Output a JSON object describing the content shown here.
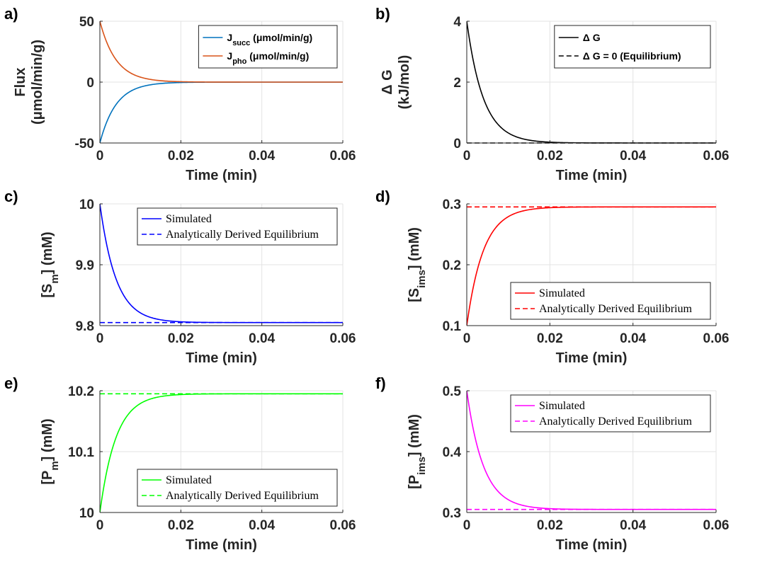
{
  "chart_data": [
    {
      "panel": "a)",
      "type": "line",
      "xlabel": "Time (min)",
      "ylabel": "Flux",
      "ylabel2": "(μmol/min/g)",
      "xlim": [
        0,
        0.06
      ],
      "ylim": [
        -50,
        50
      ],
      "xticks": [
        0,
        0.02,
        0.04,
        0.06
      ],
      "xtick_labels": [
        "0",
        "0.02",
        "0.04",
        "0.06"
      ],
      "yticks": [
        -50,
        0,
        50
      ],
      "ytick_labels": [
        "-50",
        "0",
        "50"
      ],
      "grid": true,
      "legend_position": "top-right",
      "legend_style": "sans",
      "series": [
        {
          "name": "J",
          "name_sub": "succ",
          "name_suffix": " (μmol/min/g)",
          "color": "#0072BD",
          "dash": "solid",
          "kind": "exp",
          "start": -50,
          "end": 0,
          "tau": 0.004
        },
        {
          "name": "J",
          "name_sub": "pho",
          "name_suffix": " (μmol/min/g)",
          "color": "#D95319",
          "dash": "solid",
          "kind": "exp",
          "start": 50,
          "end": 0,
          "tau": 0.004
        }
      ]
    },
    {
      "panel": "b)",
      "type": "line",
      "xlabel": "Time (min)",
      "ylabel": "Δ G",
      "ylabel2": "(kJ/mol)",
      "xlim": [
        0,
        0.06
      ],
      "ylim": [
        0,
        4
      ],
      "xticks": [
        0,
        0.02,
        0.04,
        0.06
      ],
      "xtick_labels": [
        "0",
        "0.02",
        "0.04",
        "0.06"
      ],
      "yticks": [
        0,
        2,
        4
      ],
      "ytick_labels": [
        "0",
        "2",
        "4"
      ],
      "grid": true,
      "legend_position": "top-right",
      "legend_style": "sans",
      "series": [
        {
          "name": "Δ G",
          "color": "#000000",
          "dash": "solid",
          "kind": "exp",
          "start": 4,
          "end": 0,
          "tau": 0.004
        },
        {
          "name": "Δ G = 0 (Equilibrium)",
          "color": "#000000",
          "dash": "dashed",
          "kind": "const",
          "value": 0
        }
      ]
    },
    {
      "panel": "c)",
      "type": "line",
      "xlabel": "Time (min)",
      "ylabel": "[S",
      "ylabel_sub": "m",
      "ylabel_suffix": "] (mM)",
      "xlim": [
        0,
        0.06
      ],
      "ylim": [
        9.8,
        10
      ],
      "xticks": [
        0,
        0.02,
        0.04,
        0.06
      ],
      "xtick_labels": [
        "0",
        "0.02",
        "0.04",
        "0.06"
      ],
      "yticks": [
        9.8,
        9.9,
        10
      ],
      "ytick_labels": [
        "9.8",
        "9.9",
        "10"
      ],
      "grid": true,
      "legend_position": "top-right",
      "legend_style": "serif",
      "series": [
        {
          "name": "Simulated",
          "color": "#0000FF",
          "dash": "solid",
          "kind": "exp",
          "start": 10,
          "end": 9.805,
          "tau": 0.004
        },
        {
          "name": "Analytically Derived Equilibrium",
          "color": "#0000FF",
          "dash": "dashed",
          "kind": "const",
          "value": 9.805
        }
      ]
    },
    {
      "panel": "d)",
      "type": "line",
      "xlabel": "Time (min)",
      "ylabel": "[S",
      "ylabel_sub": "ims",
      "ylabel_suffix": "] (mM)",
      "xlim": [
        0,
        0.06
      ],
      "ylim": [
        0.1,
        0.3
      ],
      "xticks": [
        0,
        0.02,
        0.04,
        0.06
      ],
      "xtick_labels": [
        "0",
        "0.02",
        "0.04",
        "0.06"
      ],
      "yticks": [
        0.1,
        0.2,
        0.3
      ],
      "ytick_labels": [
        "0.1",
        "0.2",
        "0.3"
      ],
      "grid": true,
      "legend_position": "lower-right",
      "legend_style": "serif",
      "series": [
        {
          "name": "Simulated",
          "color": "#FF0000",
          "dash": "solid",
          "kind": "exp",
          "start": 0.1,
          "end": 0.295,
          "tau": 0.004
        },
        {
          "name": "Analytically Derived Equilibrium",
          "color": "#FF0000",
          "dash": "dashed",
          "kind": "const",
          "value": 0.295
        }
      ]
    },
    {
      "panel": "e)",
      "type": "line",
      "xlabel": "Time (min)",
      "ylabel": "[P",
      "ylabel_sub": "m",
      "ylabel_suffix": "] (mM)",
      "xlim": [
        0,
        0.06
      ],
      "ylim": [
        10,
        10.2
      ],
      "xticks": [
        0,
        0.02,
        0.04,
        0.06
      ],
      "xtick_labels": [
        "0",
        "0.02",
        "0.04",
        "0.06"
      ],
      "yticks": [
        10,
        10.1,
        10.2
      ],
      "ytick_labels": [
        "10",
        "10.1",
        "10.2"
      ],
      "grid": true,
      "legend_position": "lower-right",
      "legend_style": "serif",
      "series": [
        {
          "name": "Simulated",
          "color": "#00FF00",
          "dash": "solid",
          "kind": "exp",
          "start": 10,
          "end": 10.195,
          "tau": 0.004
        },
        {
          "name": "Analytically Derived Equilibrium",
          "color": "#00FF00",
          "dash": "dashed",
          "kind": "const",
          "value": 10.195
        }
      ]
    },
    {
      "panel": "f)",
      "type": "line",
      "xlabel": "Time (min)",
      "ylabel": "[P",
      "ylabel_sub": "ims",
      "ylabel_suffix": "] (mM)",
      "xlim": [
        0,
        0.06
      ],
      "ylim": [
        0.3,
        0.5
      ],
      "xticks": [
        0,
        0.02,
        0.04,
        0.06
      ],
      "xtick_labels": [
        "0",
        "0.02",
        "0.04",
        "0.06"
      ],
      "yticks": [
        0.3,
        0.4,
        0.5
      ],
      "ytick_labels": [
        "0.3",
        "0.4",
        "0.5"
      ],
      "grid": true,
      "legend_position": "top-right",
      "legend_style": "serif",
      "series": [
        {
          "name": "Simulated",
          "color": "#FF00FF",
          "dash": "solid",
          "kind": "exp",
          "start": 0.5,
          "end": 0.305,
          "tau": 0.004
        },
        {
          "name": "Analytically Derived Equilibrium",
          "color": "#FF00FF",
          "dash": "dashed",
          "kind": "const",
          "value": 0.305
        }
      ]
    }
  ]
}
